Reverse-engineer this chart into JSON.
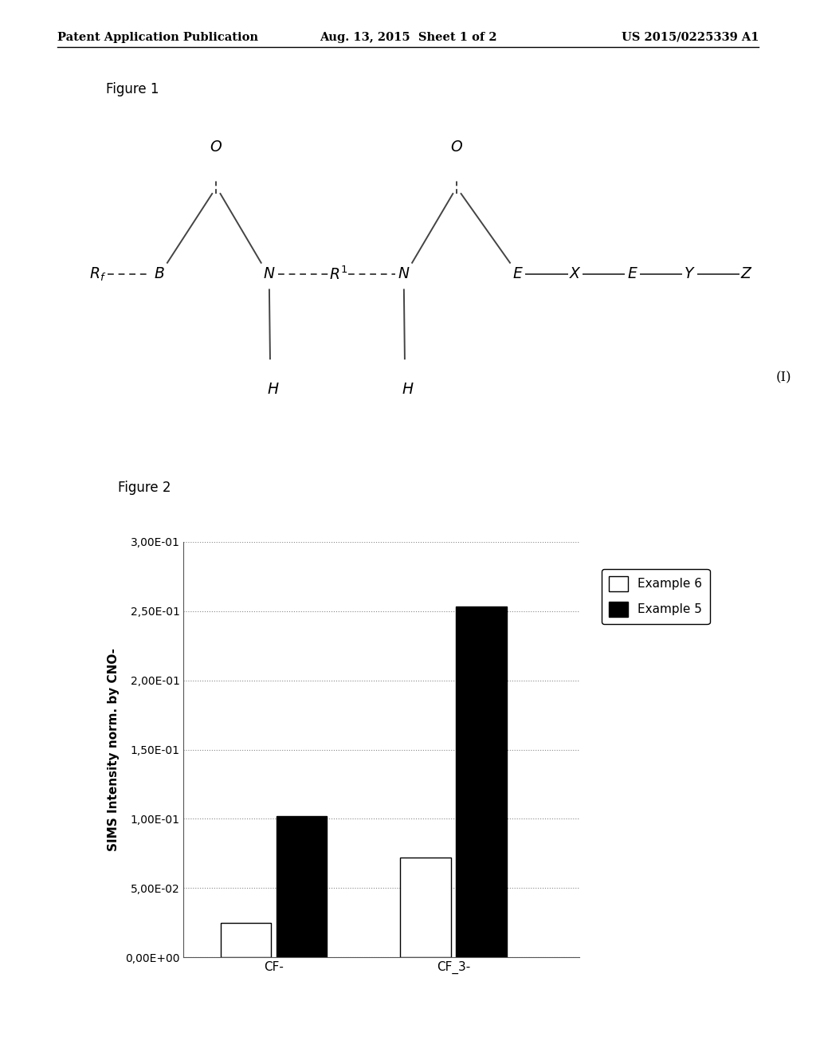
{
  "page_title_left": "Patent Application Publication",
  "page_title_center": "Aug. 13, 2015  Sheet 1 of 2",
  "page_title_right": "US 2015/0225339 A1",
  "fig1_label": "Figure 1",
  "fig2_label": "Figure 2",
  "formula_label": "(I)",
  "bar_categories": [
    "CF-",
    "CF_3-"
  ],
  "example6_values": [
    0.025,
    0.072
  ],
  "example5_values": [
    0.102,
    0.253
  ],
  "ylabel": "SIMS Intensity norm. by CNO-",
  "ytick_labels": [
    "0,00E+00",
    "5,00E-02",
    "1,00E-01",
    "1,50E-01",
    "2,00E-01",
    "2,50E-01",
    "3,00E-01"
  ],
  "ytick_values": [
    0.0,
    0.05,
    0.1,
    0.15,
    0.2,
    0.25,
    0.3
  ],
  "legend_example6": "Example 6",
  "legend_example5": "Example 5",
  "background_color": "#ffffff",
  "bar_color_example6": "#ffffff",
  "bar_color_example5": "#000000",
  "bar_edge_color": "#000000",
  "struct_lc": "#444444",
  "struct_lw": 1.4
}
